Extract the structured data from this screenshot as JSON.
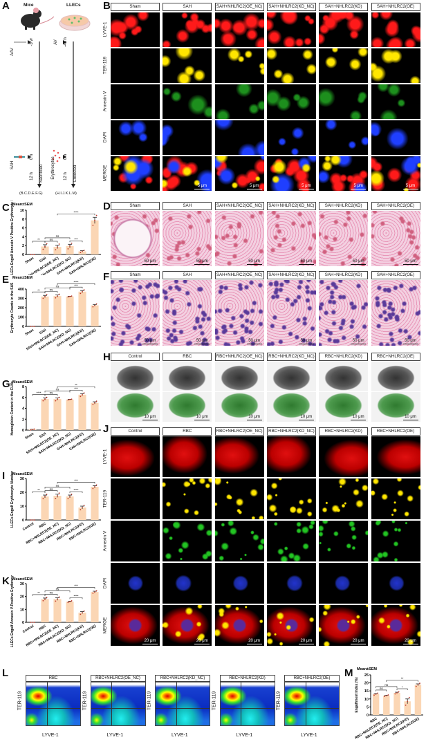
{
  "panel_letters": {
    "A": "A",
    "B": "B",
    "C": "C",
    "D": "D",
    "E": "E",
    "F": "F",
    "G": "G",
    "H": "H",
    "I": "I",
    "J": "J",
    "K": "K",
    "L": "L",
    "M": "M"
  },
  "panel_a": {
    "mice_label": "Mice",
    "cells_label": "LLECs",
    "mice_timeline": {
      "aav": "AAV",
      "t1": "-3 w",
      "sah": "SAH",
      "t2": "0 h",
      "t3": "12 h",
      "end": "Sacrificed",
      "panels": "(B.C.D.E.F.G)"
    },
    "cells_timeline": {
      "av": "AV",
      "t1": "-48 h",
      "ery": "Erythrocytes",
      "t2": "0 h",
      "t3": "12 h",
      "end": "Collected",
      "panels": "(H.I.J.K.L.M)"
    }
  },
  "sah_groups": [
    "Sham",
    "SAH",
    "SAH+NHLRC2(OE_NC)",
    "SAH+NHLRC2(KD_NC)",
    "SAH+NHLRC2(KD)",
    "SAH+NHLRC2(OE)"
  ],
  "rbc_groups": [
    "Control",
    "RBC",
    "RBC+NHLRC2(OE_NC)",
    "RBC+NHLRC2(KD_NC)",
    "RBC+NHLRC2(KD)",
    "RBC+NHLRC2(OE)"
  ],
  "if_rows": [
    "LYVE-1",
    "TER-119",
    "Annexin V",
    "DAPI",
    "MERGE"
  ],
  "scale_bars": {
    "b": "5 μm",
    "d": "50 μm",
    "f": "50 μm",
    "h": "10 μm",
    "j": "20 μm"
  },
  "channel_colors": {
    "lyve": "#ff1a1a",
    "ter": "#ffe600",
    "annexin": "#22c422",
    "dapi": "#1f3fff"
  },
  "flow": {
    "groups": [
      "RBC",
      "RBC+NHLRC2(OE_NC)",
      "RBC+NHLRC2(KD_NC)",
      "RBC+NHLRC2(KD)",
      "RBC+NHLRC2(OE)"
    ],
    "xlabel": "LYVE-1",
    "ylabel": "TER-119"
  },
  "chart_data": [
    {
      "id": "C",
      "type": "bar",
      "stat_label": "Mean±SEM",
      "ylabel": "LLECs Engulf Annexin V Positive Erythrocyte Number",
      "categories": [
        "Sham",
        "SAH",
        "SAH+NHLRC2(OE_NC)",
        "SAH+NHLRC2(KD_NC)",
        "SAH+NHLRC2(KD)",
        "SAH+NHLRC2(OE)"
      ],
      "values": [
        0,
        1.8,
        1.7,
        1.9,
        0.7,
        7.7
      ],
      "sem": [
        0,
        0.4,
        0.4,
        0.4,
        0.15,
        0.7
      ],
      "ylim": [
        0,
        10
      ],
      "yticks": [
        0,
        2,
        4,
        6,
        8,
        10
      ],
      "bar_color": "#fbd6b4",
      "significance": [
        {
          "a": 0,
          "b": 1,
          "label": "**"
        },
        {
          "a": 1,
          "b": 2,
          "label": "ns"
        },
        {
          "a": 1,
          "b": 3,
          "label": "ns"
        },
        {
          "a": 3,
          "b": 4,
          "label": "***"
        },
        {
          "a": 2,
          "b": 5,
          "label": "****"
        }
      ]
    },
    {
      "id": "E",
      "type": "bar",
      "stat_label": "Mean±SEM",
      "ylabel": "Erythrocyte Counts in the SAS",
      "categories": [
        "Sham",
        "SAH",
        "SAH+NHLRC2(OE_NC)",
        "SAH+NHLRC2(KD_NC)",
        "SAH+NHLRC2(KD)",
        "SAH+NHLRC2(OE)"
      ],
      "values": [
        0,
        320,
        325,
        320,
        372,
        225
      ],
      "sem": [
        0,
        12,
        12,
        3,
        12,
        10
      ],
      "ylim": [
        0,
        400
      ],
      "yticks": [
        0,
        100,
        200,
        300,
        400
      ],
      "bar_color": "#fbd6b4",
      "significance": [
        {
          "a": 0,
          "b": 1,
          "label": "**"
        },
        {
          "a": 1,
          "b": 2,
          "label": "ns"
        },
        {
          "a": 1,
          "b": 3,
          "label": "ns"
        },
        {
          "a": 3,
          "b": 4,
          "label": "***"
        },
        {
          "a": 2,
          "b": 5,
          "label": "****"
        }
      ]
    },
    {
      "id": "G",
      "type": "bar",
      "stat_label": "Mean±SEM",
      "ylabel": "Hemoglobin Content in the CLNs",
      "categories": [
        "Sham",
        "SAH",
        "SAH+NHLRC2(OE_NC)",
        "SAH+NHLRC2(KD_NC)",
        "SAH+NHLRC2(KD)",
        "SAH+NHLRC2(OE)"
      ],
      "values": [
        0.1,
        5.7,
        5.7,
        5.6,
        6.5,
        5.0
      ],
      "sem": [
        0.05,
        0.2,
        0.2,
        0.05,
        0.2,
        0.2
      ],
      "ylim": [
        0,
        8
      ],
      "yticks": [
        0,
        2,
        4,
        6,
        8
      ],
      "bar_color": "#fbd6b4",
      "significance": [
        {
          "a": 0,
          "b": 1,
          "label": "****"
        },
        {
          "a": 1,
          "b": 2,
          "label": "ns"
        },
        {
          "a": 1,
          "b": 3,
          "label": "ns"
        },
        {
          "a": 3,
          "b": 4,
          "label": "***"
        },
        {
          "a": 2,
          "b": 5,
          "label": "**"
        }
      ]
    },
    {
      "id": "I",
      "type": "bar",
      "stat_label": "Mean±SEM",
      "ylabel": "LLECs Engulf Erythrocyte Number",
      "categories": [
        "Control",
        "RBC",
        "RBC+NHLRC2(OE_NC)",
        "RBC+NHLRC2(KD_NC)",
        "RBC+NHLRC2(KD)",
        "RBC+NHLRC2(OE)"
      ],
      "values": [
        0,
        17,
        17.5,
        17,
        9,
        24
      ],
      "sem": [
        0,
        1,
        1.2,
        1,
        1,
        0.8
      ],
      "ylim": [
        0,
        30
      ],
      "yticks": [
        0,
        10,
        20,
        30
      ],
      "bar_color": "#fbd6b4",
      "significance": [
        {
          "a": 0,
          "b": 1,
          "label": "**"
        },
        {
          "a": 1,
          "b": 2,
          "label": "ns"
        },
        {
          "a": 1,
          "b": 3,
          "label": "ns"
        },
        {
          "a": 3,
          "b": 4,
          "label": "****"
        },
        {
          "a": 2,
          "b": 5,
          "label": "***"
        }
      ]
    },
    {
      "id": "K",
      "type": "bar",
      "stat_label": "Mean±SEM",
      "ylabel": "LLECs Engulf Annexin V-Positive Erythrocyte Number",
      "categories": [
        "Control",
        "RBC",
        "RBC+NHLRC2(OE_NC)",
        "RBC+NHLRC2(KD_NC)",
        "RBC+NHLRC2(KD)",
        "RBC+NHLRC2(OE)"
      ],
      "values": [
        0,
        18,
        18,
        16,
        7.5,
        23.5
      ],
      "sem": [
        0,
        0.8,
        1,
        0.4,
        0.8,
        0.6
      ],
      "ylim": [
        0,
        30
      ],
      "yticks": [
        0,
        10,
        20,
        30
      ],
      "bar_color": "#fbd6b4",
      "significance": [
        {
          "a": 0,
          "b": 1,
          "label": "**"
        },
        {
          "a": 1,
          "b": 2,
          "label": "ns"
        },
        {
          "a": 1,
          "b": 3,
          "label": "ns"
        },
        {
          "a": 3,
          "b": 4,
          "label": "****"
        },
        {
          "a": 2,
          "b": 5,
          "label": "***"
        }
      ]
    },
    {
      "id": "M",
      "type": "bar",
      "stat_label": "Mean±SEM",
      "ylabel": "Engulfment Index (%)",
      "categories": [
        "RBC",
        "RBC+NHLRC2(OE_NC)",
        "RBC+NHLRC2(KD_NC)",
        "RBC+NHLRC2(KD)",
        "RBC+NHLRC2(OE)"
      ],
      "values": [
        13,
        12,
        13.8,
        8.5,
        18.8
      ],
      "sem": [
        0.4,
        0.3,
        0.4,
        1.5,
        0.6
      ],
      "ylim": [
        0,
        25
      ],
      "yticks": [
        0,
        5,
        10,
        15,
        20,
        25
      ],
      "bar_color": "#fbd6b4",
      "significance": [
        {
          "a": 0,
          "b": 1,
          "label": "ns"
        },
        {
          "a": 0,
          "b": 2,
          "label": "ns"
        },
        {
          "a": 2,
          "b": 3,
          "label": "*"
        },
        {
          "a": 1,
          "b": 4,
          "label": "**"
        }
      ]
    }
  ]
}
